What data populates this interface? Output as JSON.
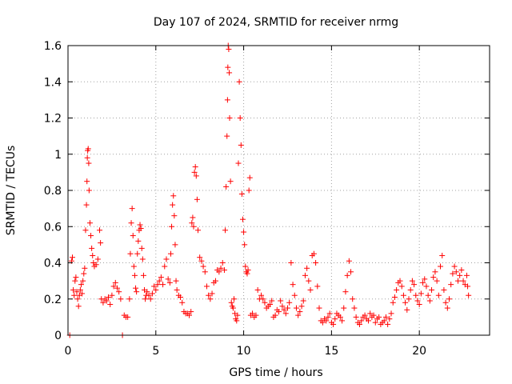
{
  "chart_data": {
    "type": "scatter",
    "title": "Day 107 of 2024, SRMTID for receiver nrmg",
    "xlabel": "GPS time / hours",
    "ylabel": "SRMTID / TECUs",
    "xlim": [
      0,
      24
    ],
    "ylim": [
      0,
      1.6
    ],
    "xticks": [
      0,
      5,
      10,
      15,
      20
    ],
    "yticks": [
      0,
      0.2,
      0.4,
      0.6,
      0.8,
      1,
      1.2,
      1.4,
      1.6
    ],
    "xtick_labels": [
      "0",
      "5",
      "10",
      "15",
      "20"
    ],
    "ytick_labels": [
      "0",
      "0.2",
      "0.4",
      "0.6",
      "0.8",
      "1",
      "1.2",
      "1.4",
      "1.6"
    ],
    "grid": true,
    "marker": "+",
    "color": "#ff0000",
    "series": [
      {
        "name": "SRMTID",
        "points": [
          [
            0.1,
            0.0
          ],
          [
            0.2,
            0.41
          ],
          [
            0.25,
            0.43
          ],
          [
            0.3,
            0.25
          ],
          [
            0.35,
            0.22
          ],
          [
            0.4,
            0.3
          ],
          [
            0.45,
            0.32
          ],
          [
            0.5,
            0.24
          ],
          [
            0.55,
            0.2
          ],
          [
            0.6,
            0.16
          ],
          [
            0.65,
            0.22
          ],
          [
            0.7,
            0.25
          ],
          [
            0.75,
            0.28
          ],
          [
            0.8,
            0.23
          ],
          [
            0.85,
            0.3
          ],
          [
            0.9,
            0.34
          ],
          [
            0.95,
            0.37
          ],
          [
            1.0,
            0.58
          ],
          [
            1.05,
            0.72
          ],
          [
            1.08,
            0.85
          ],
          [
            1.1,
            0.98
          ],
          [
            1.12,
            1.02
          ],
          [
            1.15,
            1.03
          ],
          [
            1.18,
            0.95
          ],
          [
            1.2,
            0.8
          ],
          [
            1.25,
            0.62
          ],
          [
            1.3,
            0.55
          ],
          [
            1.35,
            0.48
          ],
          [
            1.4,
            0.44
          ],
          [
            1.45,
            0.4
          ],
          [
            1.5,
            0.38
          ],
          [
            1.6,
            0.39
          ],
          [
            1.7,
            0.42
          ],
          [
            1.8,
            0.58
          ],
          [
            1.85,
            0.51
          ],
          [
            1.9,
            0.2
          ],
          [
            2.0,
            0.18
          ],
          [
            2.1,
            0.2
          ],
          [
            2.2,
            0.19
          ],
          [
            2.3,
            0.21
          ],
          [
            2.4,
            0.17
          ],
          [
            2.5,
            0.22
          ],
          [
            2.6,
            0.27
          ],
          [
            2.7,
            0.29
          ],
          [
            2.8,
            0.26
          ],
          [
            2.9,
            0.24
          ],
          [
            3.0,
            0.2
          ],
          [
            3.1,
            0.0
          ],
          [
            3.2,
            0.11
          ],
          [
            3.3,
            0.1
          ],
          [
            3.4,
            0.1
          ],
          [
            3.5,
            0.2
          ],
          [
            3.55,
            0.45
          ],
          [
            3.6,
            0.62
          ],
          [
            3.65,
            0.7
          ],
          [
            3.7,
            0.55
          ],
          [
            3.75,
            0.38
          ],
          [
            3.8,
            0.33
          ],
          [
            3.85,
            0.26
          ],
          [
            3.9,
            0.24
          ],
          [
            3.95,
            0.45
          ],
          [
            4.0,
            0.52
          ],
          [
            4.05,
            0.58
          ],
          [
            4.1,
            0.61
          ],
          [
            4.15,
            0.59
          ],
          [
            4.2,
            0.48
          ],
          [
            4.25,
            0.42
          ],
          [
            4.3,
            0.33
          ],
          [
            4.35,
            0.25
          ],
          [
            4.4,
            0.2
          ],
          [
            4.45,
            0.22
          ],
          [
            4.5,
            0.24
          ],
          [
            4.6,
            0.22
          ],
          [
            4.7,
            0.2
          ],
          [
            4.8,
            0.23
          ],
          [
            4.9,
            0.27
          ],
          [
            5.0,
            0.25
          ],
          [
            5.1,
            0.28
          ],
          [
            5.2,
            0.3
          ],
          [
            5.3,
            0.32
          ],
          [
            5.4,
            0.28
          ],
          [
            5.5,
            0.38
          ],
          [
            5.6,
            0.42
          ],
          [
            5.7,
            0.31
          ],
          [
            5.8,
            0.29
          ],
          [
            5.85,
            0.45
          ],
          [
            5.9,
            0.6
          ],
          [
            5.95,
            0.72
          ],
          [
            6.0,
            0.77
          ],
          [
            6.05,
            0.66
          ],
          [
            6.1,
            0.5
          ],
          [
            6.15,
            0.3
          ],
          [
            6.2,
            0.25
          ],
          [
            6.3,
            0.22
          ],
          [
            6.4,
            0.21
          ],
          [
            6.5,
            0.18
          ],
          [
            6.6,
            0.13
          ],
          [
            6.7,
            0.12
          ],
          [
            6.8,
            0.12
          ],
          [
            6.9,
            0.11
          ],
          [
            7.0,
            0.13
          ],
          [
            7.05,
            0.62
          ],
          [
            7.1,
            0.65
          ],
          [
            7.15,
            0.6
          ],
          [
            7.2,
            0.9
          ],
          [
            7.25,
            0.93
          ],
          [
            7.3,
            0.88
          ],
          [
            7.35,
            0.75
          ],
          [
            7.4,
            0.58
          ],
          [
            7.5,
            0.43
          ],
          [
            7.6,
            0.41
          ],
          [
            7.7,
            0.38
          ],
          [
            7.8,
            0.35
          ],
          [
            7.9,
            0.27
          ],
          [
            8.0,
            0.22
          ],
          [
            8.1,
            0.2
          ],
          [
            8.2,
            0.23
          ],
          [
            8.3,
            0.29
          ],
          [
            8.4,
            0.3
          ],
          [
            8.5,
            0.36
          ],
          [
            8.6,
            0.35
          ],
          [
            8.7,
            0.37
          ],
          [
            8.8,
            0.4
          ],
          [
            8.9,
            0.36
          ],
          [
            8.95,
            0.58
          ],
          [
            9.0,
            0.82
          ],
          [
            9.05,
            1.1
          ],
          [
            9.08,
            1.3
          ],
          [
            9.1,
            1.48
          ],
          [
            9.12,
            1.6
          ],
          [
            9.15,
            1.58
          ],
          [
            9.18,
            1.45
          ],
          [
            9.2,
            1.2
          ],
          [
            9.25,
            0.85
          ],
          [
            9.3,
            0.18
          ],
          [
            9.35,
            0.16
          ],
          [
            9.4,
            0.15
          ],
          [
            9.45,
            0.2
          ],
          [
            9.5,
            0.12
          ],
          [
            9.55,
            0.09
          ],
          [
            9.6,
            0.08
          ],
          [
            9.65,
            0.11
          ],
          [
            9.7,
            0.95
          ],
          [
            9.75,
            1.4
          ],
          [
            9.8,
            1.2
          ],
          [
            9.85,
            1.05
          ],
          [
            9.9,
            0.78
          ],
          [
            9.95,
            0.64
          ],
          [
            10.0,
            0.57
          ],
          [
            10.05,
            0.5
          ],
          [
            10.1,
            0.38
          ],
          [
            10.15,
            0.35
          ],
          [
            10.2,
            0.34
          ],
          [
            10.25,
            0.36
          ],
          [
            10.3,
            0.8
          ],
          [
            10.35,
            0.87
          ],
          [
            10.4,
            0.11
          ],
          [
            10.5,
            0.12
          ],
          [
            10.6,
            0.1
          ],
          [
            10.7,
            0.11
          ],
          [
            10.8,
            0.25
          ],
          [
            10.9,
            0.2
          ],
          [
            11.0,
            0.22
          ],
          [
            11.1,
            0.2
          ],
          [
            11.2,
            0.18
          ],
          [
            11.3,
            0.15
          ],
          [
            11.4,
            0.16
          ],
          [
            11.5,
            0.17
          ],
          [
            11.6,
            0.19
          ],
          [
            11.7,
            0.1
          ],
          [
            11.8,
            0.11
          ],
          [
            11.9,
            0.14
          ],
          [
            12.0,
            0.13
          ],
          [
            12.1,
            0.19
          ],
          [
            12.2,
            0.16
          ],
          [
            12.3,
            0.14
          ],
          [
            12.4,
            0.12
          ],
          [
            12.5,
            0.15
          ],
          [
            12.6,
            0.18
          ],
          [
            12.7,
            0.4
          ],
          [
            12.8,
            0.28
          ],
          [
            12.9,
            0.22
          ],
          [
            13.0,
            0.15
          ],
          [
            13.1,
            0.11
          ],
          [
            13.2,
            0.13
          ],
          [
            13.3,
            0.16
          ],
          [
            13.4,
            0.19
          ],
          [
            13.5,
            0.33
          ],
          [
            13.6,
            0.37
          ],
          [
            13.7,
            0.3
          ],
          [
            13.8,
            0.25
          ],
          [
            13.9,
            0.44
          ],
          [
            14.0,
            0.45
          ],
          [
            14.1,
            0.4
          ],
          [
            14.2,
            0.27
          ],
          [
            14.3,
            0.15
          ],
          [
            14.4,
            0.08
          ],
          [
            14.5,
            0.07
          ],
          [
            14.6,
            0.09
          ],
          [
            14.7,
            0.08
          ],
          [
            14.8,
            0.1
          ],
          [
            14.9,
            0.12
          ],
          [
            15.0,
            0.07
          ],
          [
            15.1,
            0.06
          ],
          [
            15.2,
            0.09
          ],
          [
            15.3,
            0.12
          ],
          [
            15.4,
            0.11
          ],
          [
            15.5,
            0.1
          ],
          [
            15.6,
            0.08
          ],
          [
            15.7,
            0.15
          ],
          [
            15.8,
            0.24
          ],
          [
            15.9,
            0.33
          ],
          [
            16.0,
            0.41
          ],
          [
            16.1,
            0.35
          ],
          [
            16.2,
            0.2
          ],
          [
            16.3,
            0.15
          ],
          [
            16.4,
            0.1
          ],
          [
            16.5,
            0.07
          ],
          [
            16.6,
            0.06
          ],
          [
            16.7,
            0.08
          ],
          [
            16.8,
            0.1
          ],
          [
            16.9,
            0.11
          ],
          [
            17.0,
            0.09
          ],
          [
            17.1,
            0.08
          ],
          [
            17.2,
            0.12
          ],
          [
            17.3,
            0.1
          ],
          [
            17.4,
            0.11
          ],
          [
            17.5,
            0.07
          ],
          [
            17.6,
            0.09
          ],
          [
            17.7,
            0.1
          ],
          [
            17.8,
            0.06
          ],
          [
            17.9,
            0.07
          ],
          [
            18.0,
            0.08
          ],
          [
            18.1,
            0.1
          ],
          [
            18.2,
            0.06
          ],
          [
            18.3,
            0.09
          ],
          [
            18.4,
            0.12
          ],
          [
            18.5,
            0.18
          ],
          [
            18.6,
            0.21
          ],
          [
            18.7,
            0.25
          ],
          [
            18.8,
            0.29
          ],
          [
            18.9,
            0.3
          ],
          [
            19.0,
            0.27
          ],
          [
            19.1,
            0.22
          ],
          [
            19.2,
            0.18
          ],
          [
            19.3,
            0.14
          ],
          [
            19.4,
            0.2
          ],
          [
            19.5,
            0.25
          ],
          [
            19.6,
            0.3
          ],
          [
            19.7,
            0.28
          ],
          [
            19.8,
            0.22
          ],
          [
            19.9,
            0.19
          ],
          [
            20.0,
            0.17
          ],
          [
            20.1,
            0.23
          ],
          [
            20.2,
            0.29
          ],
          [
            20.3,
            0.31
          ],
          [
            20.4,
            0.27
          ],
          [
            20.5,
            0.22
          ],
          [
            20.6,
            0.19
          ],
          [
            20.7,
            0.25
          ],
          [
            20.8,
            0.32
          ],
          [
            20.9,
            0.35
          ],
          [
            21.0,
            0.3
          ],
          [
            21.1,
            0.22
          ],
          [
            21.2,
            0.38
          ],
          [
            21.3,
            0.44
          ],
          [
            21.4,
            0.25
          ],
          [
            21.5,
            0.18
          ],
          [
            21.6,
            0.15
          ],
          [
            21.7,
            0.2
          ],
          [
            21.8,
            0.28
          ],
          [
            21.9,
            0.34
          ],
          [
            22.0,
            0.38
          ],
          [
            22.1,
            0.35
          ],
          [
            22.2,
            0.3
          ],
          [
            22.3,
            0.33
          ],
          [
            22.4,
            0.36
          ],
          [
            22.5,
            0.3
          ],
          [
            22.6,
            0.28
          ],
          [
            22.7,
            0.33
          ],
          [
            22.75,
            0.27
          ],
          [
            22.8,
            0.22
          ]
        ]
      }
    ]
  }
}
